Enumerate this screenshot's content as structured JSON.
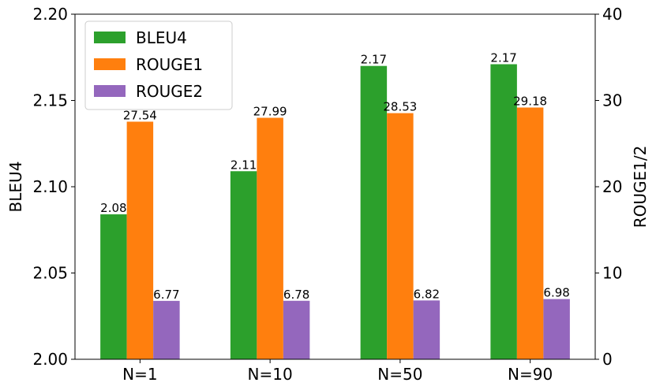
{
  "chart_data": {
    "type": "bar",
    "categories": [
      "N=1",
      "N=10",
      "N=50",
      "N=90"
    ],
    "series": [
      {
        "name": "BLEU4",
        "axis": "left",
        "color": "#2ca02c",
        "values": [
          2.084,
          2.109,
          2.17,
          2.171
        ],
        "labels": [
          "2.08",
          "2.11",
          "2.17",
          "2.17"
        ]
      },
      {
        "name": "ROUGE1",
        "axis": "right",
        "color": "#ff7f0e",
        "values": [
          27.54,
          27.99,
          28.53,
          29.18
        ],
        "labels": [
          "27.54",
          "27.99",
          "28.53",
          "29.18"
        ]
      },
      {
        "name": "ROUGE2",
        "axis": "right",
        "color": "#9467bd",
        "values": [
          6.77,
          6.78,
          6.82,
          6.98
        ],
        "labels": [
          "6.77",
          "6.78",
          "6.82",
          "6.98"
        ]
      }
    ],
    "ylabel_left": "BLEU4",
    "ylabel_right": "ROUGE1/2",
    "ylim_left": [
      2.0,
      2.2
    ],
    "ylim_right": [
      0,
      40
    ],
    "yticks_left": [
      "2.00",
      "2.05",
      "2.10",
      "2.15",
      "2.20"
    ],
    "yticks_right": [
      "0",
      "10",
      "20",
      "30",
      "40"
    ],
    "legend_position": "top-left",
    "grid": false
  }
}
